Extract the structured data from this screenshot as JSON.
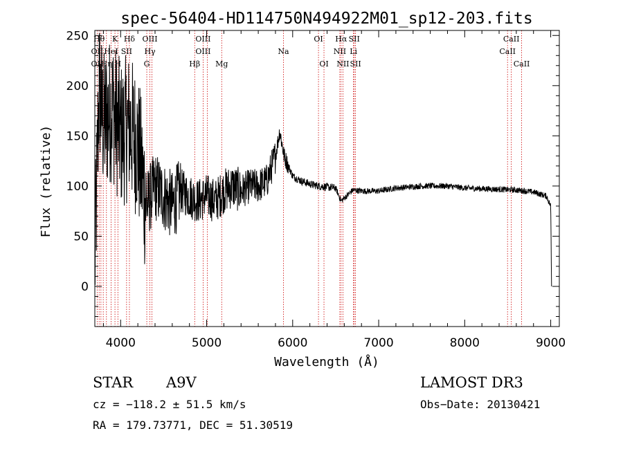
{
  "chart_data": {
    "type": "line",
    "title": "spec-56404-HD114750N494922M01_sp12-203.fits",
    "xlabel": "Wavelength (Å)",
    "ylabel": "Flux (relative)",
    "xlim": [
      3700,
      9100
    ],
    "ylim": [
      -40,
      255
    ],
    "xticks": [
      4000,
      5000,
      6000,
      7000,
      8000,
      9000
    ],
    "yticks": [
      0,
      50,
      100,
      150,
      200,
      250
    ],
    "spectrum_key_points": [
      {
        "x": 3700,
        "y": 20
      },
      {
        "x": 3750,
        "y": 200
      },
      {
        "x": 3800,
        "y": 160
      },
      {
        "x": 3900,
        "y": 180
      },
      {
        "x": 4000,
        "y": 150
      },
      {
        "x": 4100,
        "y": 160
      },
      {
        "x": 4200,
        "y": 140
      },
      {
        "x": 4300,
        "y": 80
      },
      {
        "x": 4400,
        "y": 100
      },
      {
        "x": 4500,
        "y": 90
      },
      {
        "x": 4600,
        "y": 80
      },
      {
        "x": 4700,
        "y": 95
      },
      {
        "x": 4800,
        "y": 90
      },
      {
        "x": 4900,
        "y": 85
      },
      {
        "x": 5000,
        "y": 90
      },
      {
        "x": 5100,
        "y": 85
      },
      {
        "x": 5200,
        "y": 95
      },
      {
        "x": 5300,
        "y": 100
      },
      {
        "x": 5400,
        "y": 95
      },
      {
        "x": 5500,
        "y": 100
      },
      {
        "x": 5600,
        "y": 100
      },
      {
        "x": 5700,
        "y": 105
      },
      {
        "x": 5800,
        "y": 130
      },
      {
        "x": 5850,
        "y": 155
      },
      {
        "x": 5900,
        "y": 130
      },
      {
        "x": 6000,
        "y": 110
      },
      {
        "x": 6100,
        "y": 105
      },
      {
        "x": 6200,
        "y": 102
      },
      {
        "x": 6300,
        "y": 100
      },
      {
        "x": 6400,
        "y": 99
      },
      {
        "x": 6500,
        "y": 98
      },
      {
        "x": 6563,
        "y": 85
      },
      {
        "x": 6700,
        "y": 96
      },
      {
        "x": 6800,
        "y": 95
      },
      {
        "x": 7000,
        "y": 95
      },
      {
        "x": 7200,
        "y": 98
      },
      {
        "x": 7500,
        "y": 100
      },
      {
        "x": 7800,
        "y": 100
      },
      {
        "x": 8000,
        "y": 98
      },
      {
        "x": 8300,
        "y": 97
      },
      {
        "x": 8600,
        "y": 96
      },
      {
        "x": 8800,
        "y": 94
      },
      {
        "x": 8950,
        "y": 90
      },
      {
        "x": 9000,
        "y": 80
      },
      {
        "x": 9010,
        "y": 0
      }
    ],
    "line_markers": [
      {
        "label": "Hθ",
        "x": 3750,
        "row": 0
      },
      {
        "label": "K",
        "x": 3934,
        "row": 0
      },
      {
        "label": "Hδ",
        "x": 4102,
        "row": 0
      },
      {
        "label": "OIII",
        "x": 4340,
        "row": 0
      },
      {
        "label": "OIII",
        "x": 4959,
        "row": 0
      },
      {
        "label": "OI",
        "x": 6300,
        "row": 0
      },
      {
        "label": "Hα",
        "x": 6563,
        "row": 0
      },
      {
        "label": "SII",
        "x": 6716,
        "row": 0
      },
      {
        "label": "CaII",
        "x": 8542,
        "row": 0
      },
      {
        "label": "OII",
        "x": 3727,
        "row": 1
      },
      {
        "label": "HeI",
        "x": 3889,
        "row": 1
      },
      {
        "label": "SII",
        "x": 4069,
        "row": 1
      },
      {
        "label": "Hγ",
        "x": 4340,
        "row": 1
      },
      {
        "label": "OIII",
        "x": 4959,
        "row": 1
      },
      {
        "label": "Na",
        "x": 5893,
        "row": 1
      },
      {
        "label": "NII",
        "x": 6548,
        "row": 1
      },
      {
        "label": "Li",
        "x": 6707,
        "row": 1
      },
      {
        "label": "CaII",
        "x": 8498,
        "row": 1
      },
      {
        "label": "OII",
        "x": 3727,
        "row": 2
      },
      {
        "label": "Hη",
        "x": 3835,
        "row": 2
      },
      {
        "label": "H",
        "x": 3968,
        "row": 2
      },
      {
        "label": "G",
        "x": 4304,
        "row": 2
      },
      {
        "label": "Hβ",
        "x": 4861,
        "row": 2
      },
      {
        "label": "Mg",
        "x": 5175,
        "row": 2
      },
      {
        "label": "OI",
        "x": 6364,
        "row": 2
      },
      {
        "label": "NII",
        "x": 6584,
        "row": 2
      },
      {
        "label": "SII",
        "x": 6731,
        "row": 2
      },
      {
        "label": "CaII",
        "x": 8662,
        "row": 2
      }
    ],
    "marker_lines_x": [
      3727,
      3750,
      3771,
      3798,
      3835,
      3889,
      3934,
      3968,
      4069,
      4102,
      4304,
      4340,
      4363,
      4861,
      4959,
      5007,
      5175,
      5893,
      6300,
      6364,
      6548,
      6563,
      6584,
      6707,
      6716,
      6731,
      8498,
      8542,
      8662
    ]
  },
  "info": {
    "class": "STAR",
    "subclass": "A9V",
    "survey": "LAMOST DR3",
    "cz": "cz = −118.2 ± 51.5 km/s",
    "obs_date": "Obs−Date: 20130421",
    "coords": "RA = 179.73771, DEC =  51.30519"
  },
  "colors": {
    "axis": "#000000",
    "spectrum": "#000000",
    "marker_line": "#cc0000"
  }
}
